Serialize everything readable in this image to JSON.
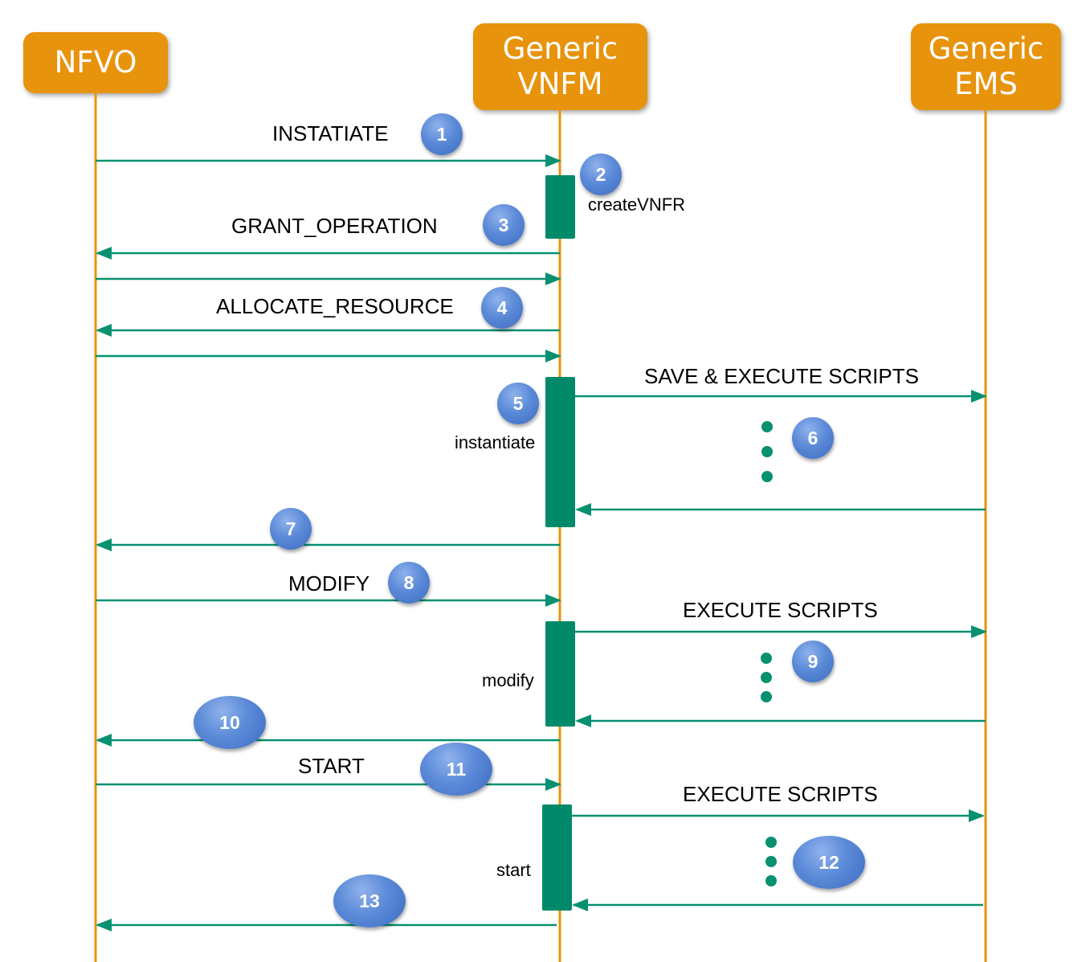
{
  "actors": {
    "nfvo": "NFVO",
    "vnfm": "Generic\nVNFM",
    "ems": "Generic\nEMS"
  },
  "messages": {
    "instantiate": "INSTATIATE",
    "grant_operation": "GRANT_OPERATION",
    "allocate_resource": "ALLOCATE_RESOURCE",
    "save_execute_scripts": "SAVE & EXECUTE SCRIPTS",
    "modify": "MODIFY",
    "execute_scripts_1": "EXECUTE SCRIPTS",
    "start": "START",
    "execute_scripts_2": "EXECUTE SCRIPTS"
  },
  "activations": {
    "create_vnfr": "createVNFR",
    "instantiate": "instantiate",
    "modify": "modify",
    "start": "start"
  },
  "steps": [
    "1",
    "2",
    "3",
    "4",
    "5",
    "6",
    "7",
    "8",
    "9",
    "10",
    "11",
    "12",
    "13"
  ],
  "colors": {
    "actor": "#E8930C",
    "lifeline": "#E8930C",
    "arrow": "#079170",
    "activation": "#008A69",
    "badge": "#5B8AD8"
  }
}
